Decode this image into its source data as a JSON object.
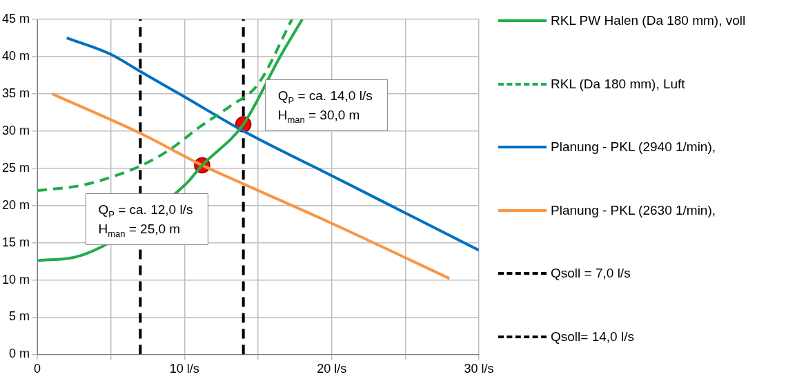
{
  "chart_data": {
    "type": "line",
    "xlim": [
      0,
      30
    ],
    "xticks": [
      0,
      {
        "value": 5,
        "label": null
      },
      {
        "value": 10,
        "label": "10 l/s"
      },
      {
        "value": 15,
        "label": null
      },
      {
        "value": 20,
        "label": "20 l/s"
      },
      {
        "value": 25,
        "label": null
      },
      {
        "value": 30,
        "label": "30 l/s"
      }
    ],
    "ylim": [
      0,
      45
    ],
    "yticks": [
      {
        "value": 0,
        "label": "0 m"
      },
      {
        "value": 5,
        "label": "5 m"
      },
      {
        "value": 10,
        "label": "10 m"
      },
      {
        "value": 15,
        "label": "15 m"
      },
      {
        "value": 20,
        "label": "20 m"
      },
      {
        "value": 25,
        "label": "25 m"
      },
      {
        "value": 30,
        "label": "30 m"
      },
      {
        "value": 35,
        "label": "35 m"
      },
      {
        "value": 40,
        "label": "40 m"
      },
      {
        "value": 45,
        "label": "45 m"
      }
    ],
    "grid": true,
    "legend": "right",
    "marker": "none",
    "series": [
      {
        "name": "RKL PW Halen (Da 180 mm), voll",
        "color": "#22ac4a",
        "line_style": "solid",
        "x": [
          0,
          3,
          10,
          11.2,
          14,
          16.5,
          18
        ],
        "values": [
          12.6,
          13.3,
          22.7,
          25.4,
          30.9,
          40,
          45
        ]
      },
      {
        "name": "RKL (Da 180 mm), Luft",
        "color": "#22ac4a",
        "line_style": "dashed",
        "x": [
          0,
          3,
          5,
          7,
          9,
          11,
          13,
          15,
          17.3
        ],
        "values": [
          22,
          22.7,
          23.8,
          25.3,
          27.5,
          30.5,
          33.2,
          36.3,
          45
        ]
      },
      {
        "name": "Planung - PKL (2940 1/min),",
        "color": "#0070c0",
        "line_style": "solid",
        "x": [
          2,
          5,
          7,
          10,
          14,
          20,
          25,
          30
        ],
        "values": [
          42.5,
          40.3,
          38,
          34.6,
          30,
          24,
          19,
          14
        ]
      },
      {
        "name": "Planung - PKL (2630 1/min),",
        "color": "#f79646",
        "line_style": "solid",
        "x": [
          1,
          7,
          11.2,
          14,
          20,
          28
        ],
        "values": [
          35,
          29.7,
          25.4,
          22.9,
          17.6,
          10.2
        ]
      },
      {
        "type": "scatter",
        "color": "#ff0000",
        "marker": "circle",
        "x": [
          11.2,
          14
        ],
        "values": [
          25.4,
          30.9
        ]
      },
      {
        "name": "Qsoll = 7,0 l/s",
        "color": "#000000",
        "line_style": "dashed",
        "x": [
          7,
          7
        ],
        "values": [
          0,
          45
        ]
      },
      {
        "name": "Qsoll= 14,0 l/s",
        "color": "#000000",
        "line_style": "dashed",
        "x": [
          14,
          14
        ],
        "values": [
          0,
          45
        ]
      }
    ],
    "annotations": [
      {
        "text": "Q$_{P}$ = ca. 14,0 l/s\nH$_{man}$ = 30,0 m",
        "x": 15.5,
        "y": 36.9
      },
      "Q$_{P}$ = ca. 12,0 l/s\nH$_{man}$ = 25,0 m"
    ]
  }
}
